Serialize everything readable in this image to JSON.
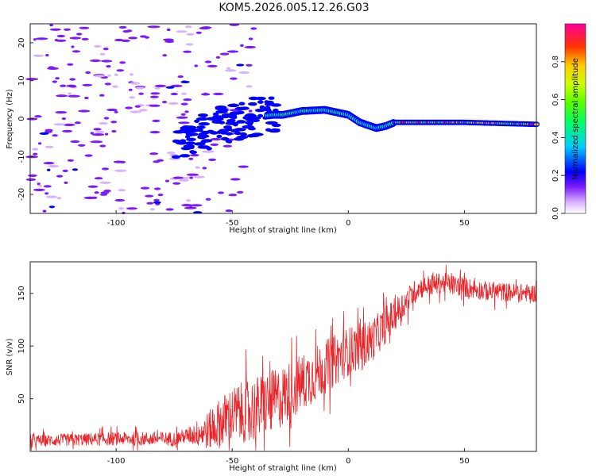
{
  "title": "KOM5.2026.005.12.26.G03",
  "chart_data": [
    {
      "type": "heatmap",
      "name": "spectrogram",
      "xlabel": "Height of straight line (km)",
      "ylabel": "Frequency (Hz)",
      "xlim": [
        -137,
        81
      ],
      "ylim": [
        -25,
        25
      ],
      "xticks": [
        -100,
        -50,
        0,
        50
      ],
      "xtick_labels": [
        "-100",
        "-50",
        "0",
        "50"
      ],
      "yticks": [
        -20,
        -10,
        0,
        10,
        20
      ],
      "ytick_labels": [
        "-20",
        "-10",
        "0",
        "10",
        "20"
      ],
      "ridge": [
        {
          "x": -70,
          "f": -6.0
        },
        {
          "x": -60,
          "f": -3.0
        },
        {
          "x": -50,
          "f": -1.0
        },
        {
          "x": -40,
          "f": 0.5
        },
        {
          "x": -32,
          "f": 1.0
        },
        {
          "x": -28,
          "f": 1.0
        },
        {
          "x": -20,
          "f": 2.0
        },
        {
          "x": -10,
          "f": 2.3
        },
        {
          "x": 0,
          "f": 1.0
        },
        {
          "x": 5,
          "f": -1.0
        },
        {
          "x": 12,
          "f": -2.5
        },
        {
          "x": 16,
          "f": -2.0
        },
        {
          "x": 20,
          "f": -1.0
        },
        {
          "x": 30,
          "f": -1.0
        },
        {
          "x": 50,
          "f": -1.0
        },
        {
          "x": 80,
          "f": -1.5
        }
      ],
      "colorbar": {
        "label": "Normalized spectral amplitude",
        "range": [
          0,
          1
        ],
        "ticks": [
          0.0,
          0.2,
          0.4,
          0.6,
          0.8
        ],
        "tick_labels": [
          "0.0",
          "0.2",
          "0.4",
          "0.6",
          "0.8"
        ]
      }
    },
    {
      "type": "line",
      "name": "snr",
      "xlabel": "Height of straight line (km)",
      "ylabel": "SNR (v/v)",
      "xlim": [
        -137,
        81
      ],
      "ylim": [
        0,
        180
      ],
      "xticks": [
        -100,
        -50,
        0,
        50
      ],
      "xtick_labels": [
        "-100",
        "-50",
        "0",
        "50"
      ],
      "yticks": [
        50,
        100,
        150
      ],
      "ytick_labels": [
        "50",
        "100",
        "150"
      ],
      "color": "#e8262a",
      "mean_curve": [
        {
          "x": -137,
          "y": 10
        },
        {
          "x": -100,
          "y": 12
        },
        {
          "x": -75,
          "y": 12
        },
        {
          "x": -60,
          "y": 20
        },
        {
          "x": -50,
          "y": 35
        },
        {
          "x": -40,
          "y": 40
        },
        {
          "x": -30,
          "y": 50
        },
        {
          "x": -20,
          "y": 65
        },
        {
          "x": -10,
          "y": 80
        },
        {
          "x": 0,
          "y": 95
        },
        {
          "x": 10,
          "y": 105
        },
        {
          "x": 20,
          "y": 130
        },
        {
          "x": 30,
          "y": 155
        },
        {
          "x": 40,
          "y": 160
        },
        {
          "x": 60,
          "y": 152
        },
        {
          "x": 81,
          "y": 150
        }
      ],
      "noise_profile": [
        {
          "x": -137,
          "a": 8
        },
        {
          "x": -70,
          "a": 10
        },
        {
          "x": -55,
          "a": 35
        },
        {
          "x": -40,
          "a": 45
        },
        {
          "x": -20,
          "a": 40
        },
        {
          "x": 10,
          "a": 30
        },
        {
          "x": 30,
          "a": 15
        },
        {
          "x": 81,
          "a": 12
        }
      ]
    }
  ]
}
